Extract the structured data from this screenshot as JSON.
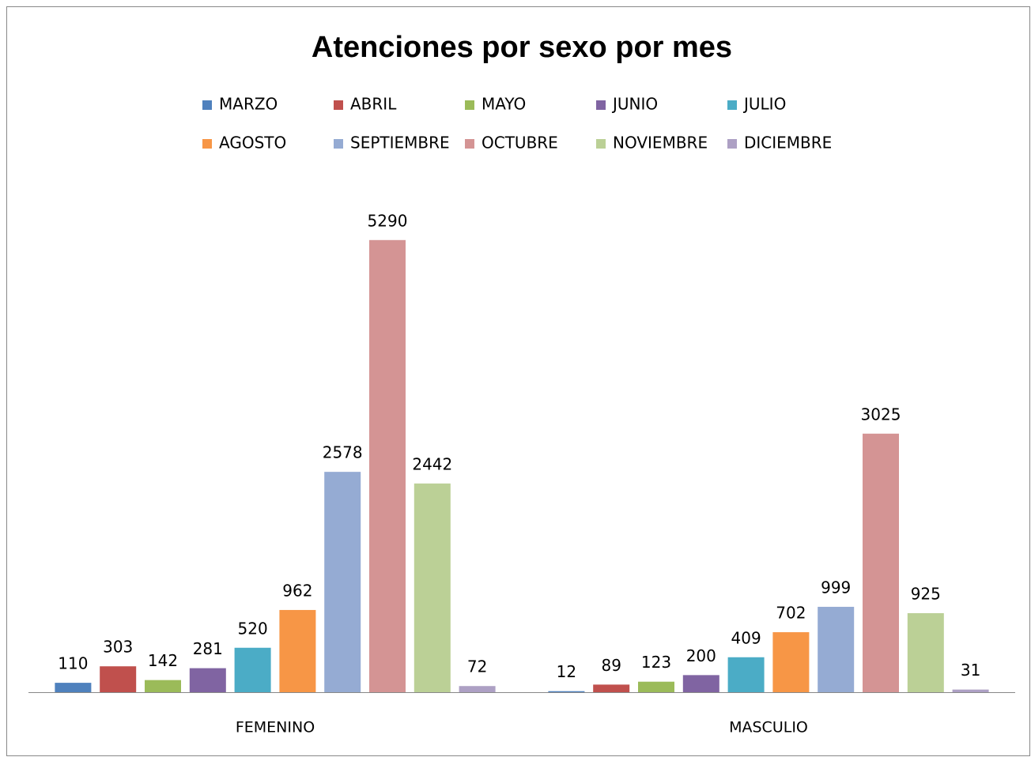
{
  "chart_data": {
    "type": "bar",
    "title": "Atenciones por sexo por mes",
    "categories": [
      "FEMENINO",
      "MASCULIO"
    ],
    "series": [
      {
        "name": "MARZO",
        "color": "#4F81BD",
        "values": [
          110,
          12
        ]
      },
      {
        "name": "ABRIL",
        "color": "#C0504D",
        "values": [
          303,
          89
        ]
      },
      {
        "name": "MAYO",
        "color": "#9BBB59",
        "values": [
          142,
          123
        ]
      },
      {
        "name": "JUNIO",
        "color": "#8064A2",
        "values": [
          281,
          200
        ]
      },
      {
        "name": "JULIO",
        "color": "#4BACC6",
        "values": [
          520,
          409
        ]
      },
      {
        "name": "AGOSTO",
        "color": "#F79646",
        "values": [
          962,
          702
        ]
      },
      {
        "name": "SEPTIEMBRE",
        "color": "#95ABD3",
        "values": [
          2578,
          999
        ]
      },
      {
        "name": "OCTUBRE",
        "color": "#D49494",
        "values": [
          5290,
          3025
        ]
      },
      {
        "name": "NOVIEMBRE",
        "color": "#BBD096",
        "values": [
          2442,
          925
        ]
      },
      {
        "name": "DICIEMBRE",
        "color": "#ADA0C4",
        "values": [
          72,
          31
        ]
      }
    ],
    "ylim": [
      0,
      6000
    ],
    "legend": "top"
  }
}
